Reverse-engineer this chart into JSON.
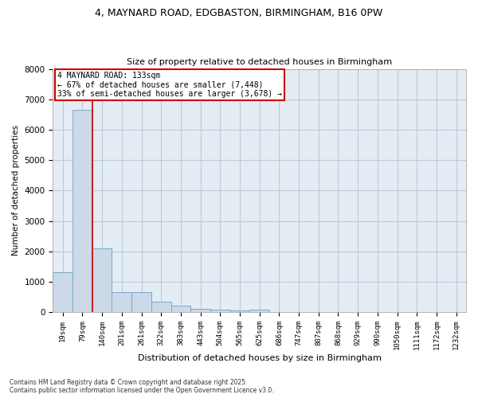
{
  "title_line1": "4, MAYNARD ROAD, EDGBASTON, BIRMINGHAM, B16 0PW",
  "title_line2": "Size of property relative to detached houses in Birmingham",
  "xlabel": "Distribution of detached houses by size in Birmingham",
  "ylabel": "Number of detached properties",
  "categories": [
    "19sqm",
    "79sqm",
    "140sqm",
    "201sqm",
    "261sqm",
    "322sqm",
    "383sqm",
    "443sqm",
    "504sqm",
    "565sqm",
    "625sqm",
    "686sqm",
    "747sqm",
    "807sqm",
    "868sqm",
    "929sqm",
    "990sqm",
    "1050sqm",
    "1111sqm",
    "1172sqm",
    "1232sqm"
  ],
  "values": [
    1300,
    6650,
    2100,
    670,
    670,
    330,
    200,
    120,
    80,
    50,
    70,
    0,
    0,
    0,
    0,
    0,
    0,
    0,
    0,
    0,
    0
  ],
  "bar_color": "#ccd9e8",
  "bar_edge_color": "#7aaac8",
  "red_line_x": 1.5,
  "annotation_text": "4 MAYNARD ROAD: 133sqm\n← 67% of detached houses are smaller (7,448)\n33% of semi-detached houses are larger (3,678) →",
  "annotation_box_color": "#ffffff",
  "annotation_box_edge": "#cc0000",
  "red_line_color": "#cc0000",
  "background_color": "#ffffff",
  "plot_bg_color": "#e4ecf4",
  "grid_color": "#bccad8",
  "ylim": [
    0,
    8000
  ],
  "yticks": [
    0,
    1000,
    2000,
    3000,
    4000,
    5000,
    6000,
    7000,
    8000
  ],
  "footer_line1": "Contains HM Land Registry data © Crown copyright and database right 2025.",
  "footer_line2": "Contains public sector information licensed under the Open Government Licence v3.0."
}
